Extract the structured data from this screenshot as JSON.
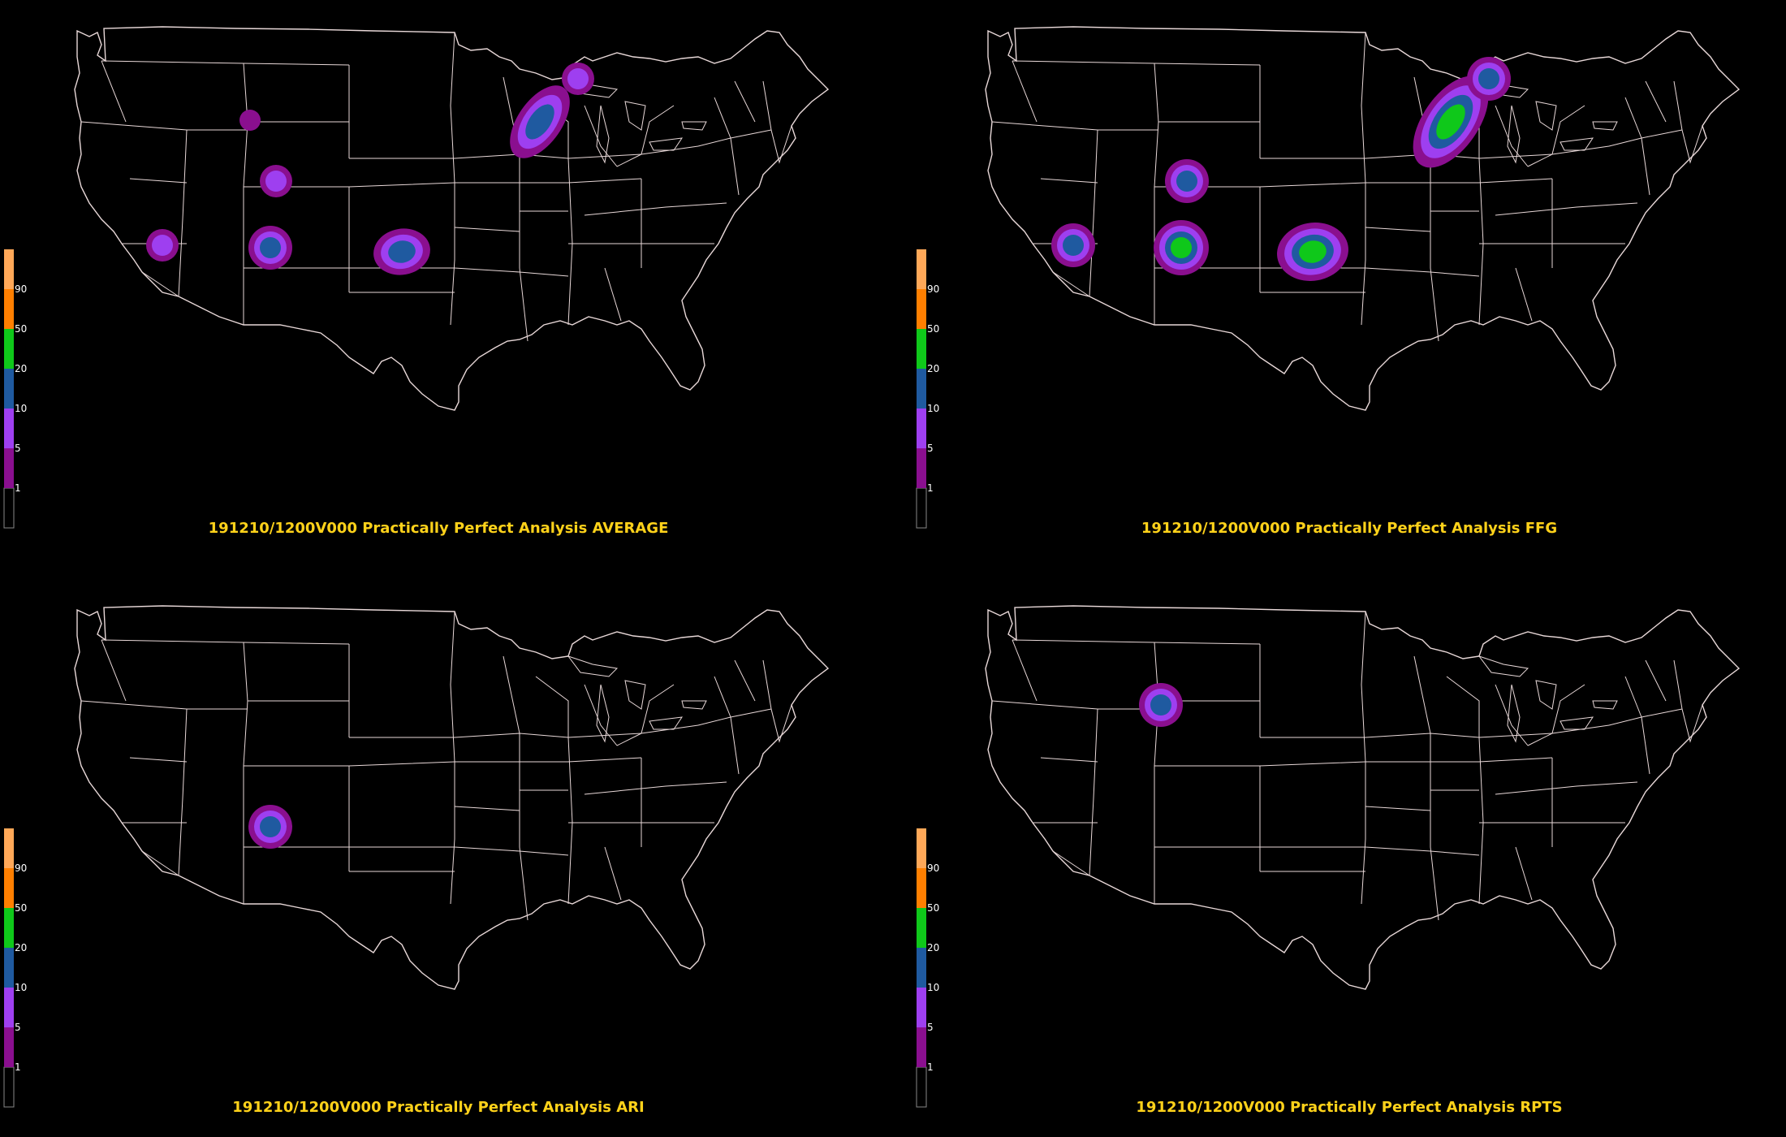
{
  "legend": {
    "levels": [
      "1",
      "5",
      "10",
      "20",
      "50",
      "90"
    ],
    "colors": [
      "#000000",
      "#8a0f8f",
      "#9e3ff0",
      "#1f5aa0",
      "#0fc81a",
      "#ff7f00",
      "#ffa858"
    ]
  },
  "panels": [
    {
      "id": "average",
      "caption": "191210/1200V000 Practically Perfect Analysis AVERAGE",
      "blobs": [
        {
          "region": "northern-rockies",
          "max_level": 1
        },
        {
          "region": "kansas",
          "max_level": 5
        },
        {
          "region": "arizona",
          "max_level": 5
        },
        {
          "region": "oklahoma-texas",
          "max_level": 10
        },
        {
          "region": "mississippi",
          "max_level": 10
        },
        {
          "region": "new-england",
          "max_level": 10
        },
        {
          "region": "maine-coast",
          "max_level": 5
        }
      ]
    },
    {
      "id": "ffg",
      "caption": "191210/1200V000 Practically Perfect Analysis FFG",
      "blobs": [
        {
          "region": "kansas",
          "max_level": 10
        },
        {
          "region": "arizona",
          "max_level": 10
        },
        {
          "region": "oklahoma-texas",
          "max_level": 20
        },
        {
          "region": "mississippi",
          "max_level": 20
        },
        {
          "region": "new-england",
          "max_level": 20
        },
        {
          "region": "maine-coast",
          "max_level": 10
        }
      ]
    },
    {
      "id": "ari",
      "caption": "191210/1200V000 Practically Perfect Analysis ARI",
      "blobs": [
        {
          "region": "oklahoma-texas",
          "max_level": 10
        }
      ]
    },
    {
      "id": "rpts",
      "caption": "191210/1200V000 Practically Perfect Analysis RPTS",
      "blobs": [
        {
          "region": "northern-plains",
          "max_level": 10
        }
      ]
    }
  ]
}
